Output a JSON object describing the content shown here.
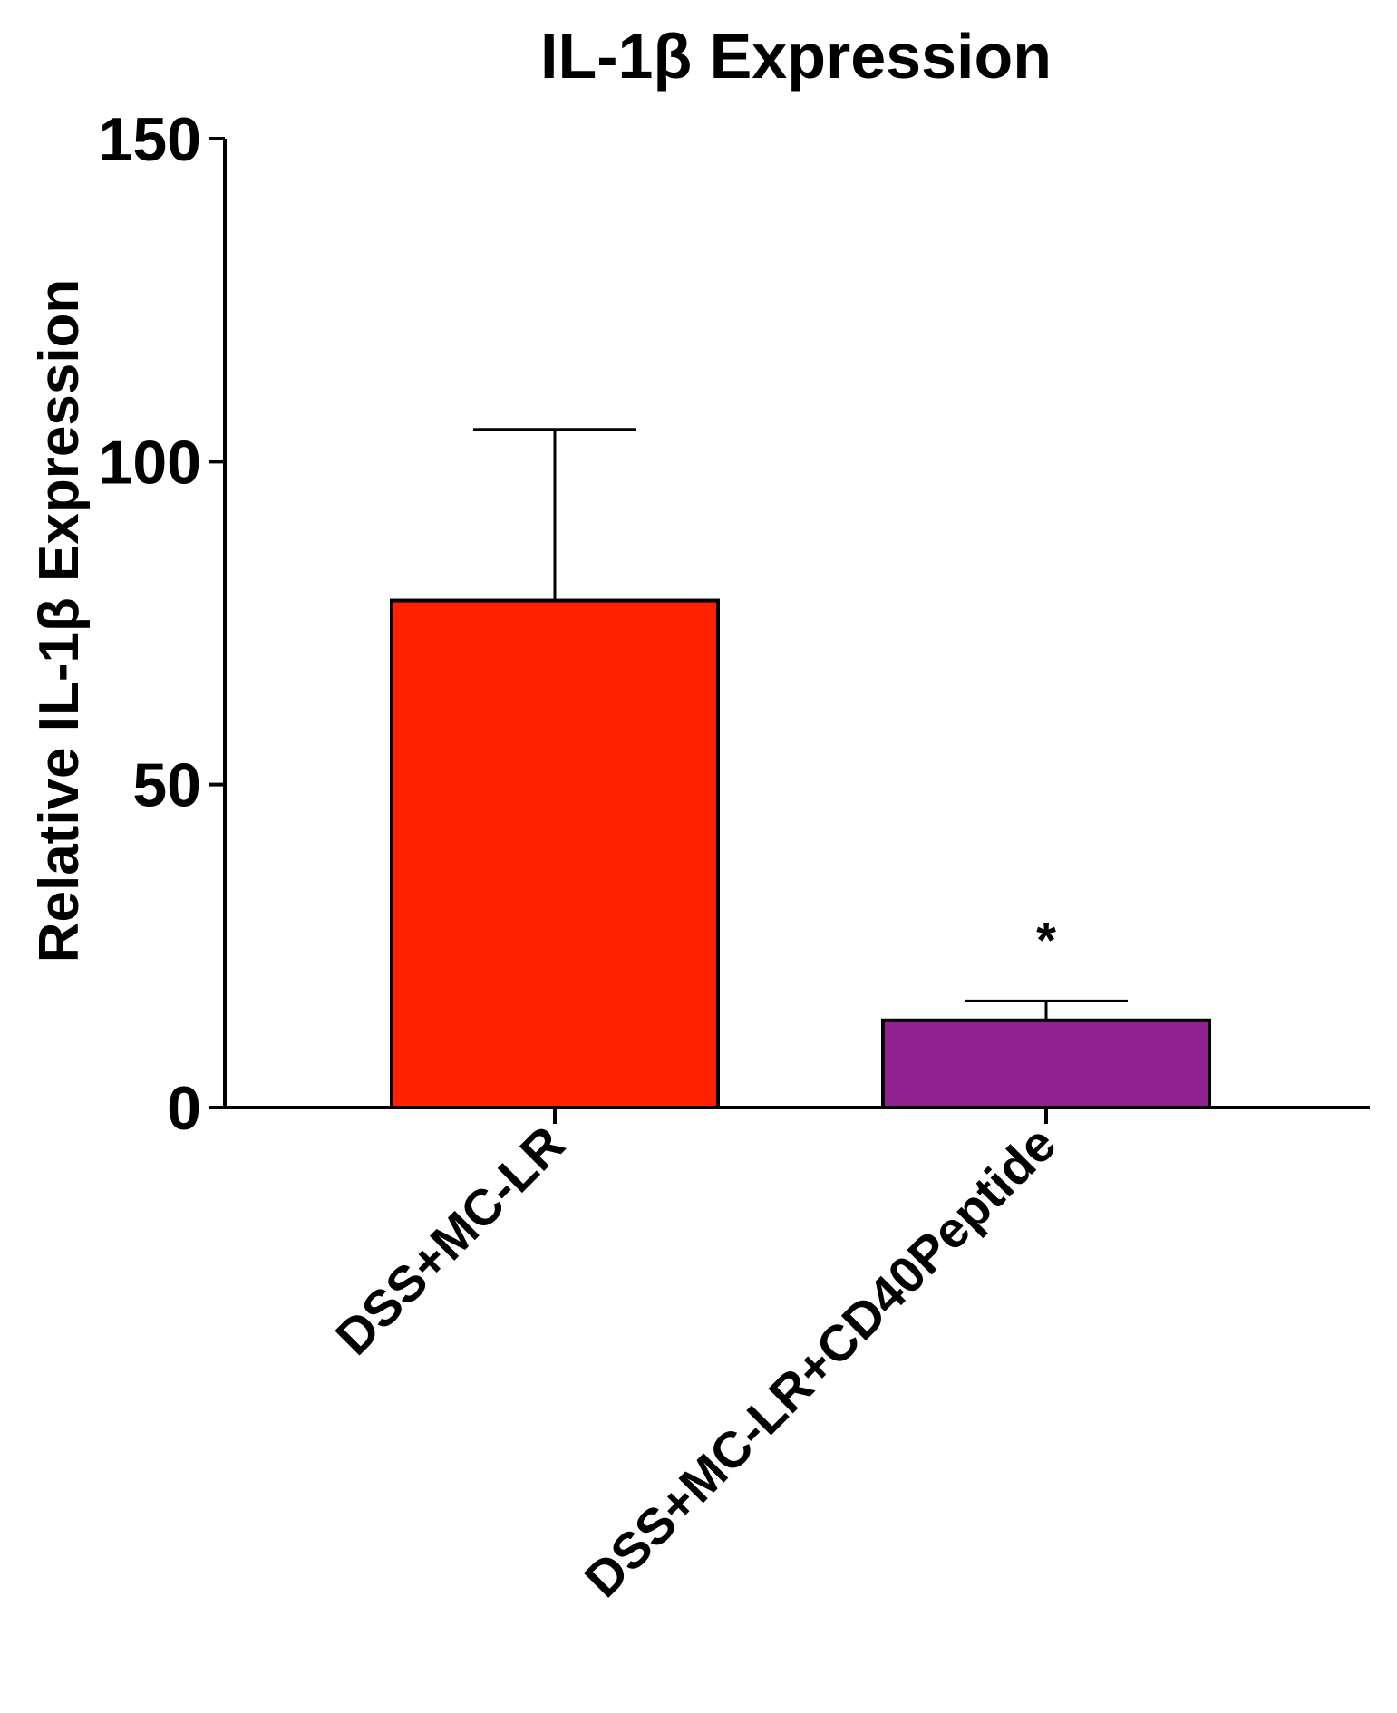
{
  "chart_data": {
    "type": "bar",
    "title": "IL-1β Expression",
    "xlabel": "",
    "ylabel": "Relative IL-1β Expression",
    "ylim": [
      0,
      150
    ],
    "yticks": [
      "0",
      "50",
      "100",
      "150"
    ],
    "ytick_values": [
      0,
      50,
      100,
      150
    ],
    "categories": [
      "DSS+MC-LR",
      "DSS+MC-LR+CD40Peptide"
    ],
    "values": [
      78.5,
      13.5
    ],
    "error_upper": [
      105,
      16.5
    ],
    "bar_colors": [
      "#ff2200",
      "#922190"
    ],
    "annotations": [
      {
        "category_index": 1,
        "text": "*"
      }
    ],
    "grid": false,
    "legend": "none"
  }
}
